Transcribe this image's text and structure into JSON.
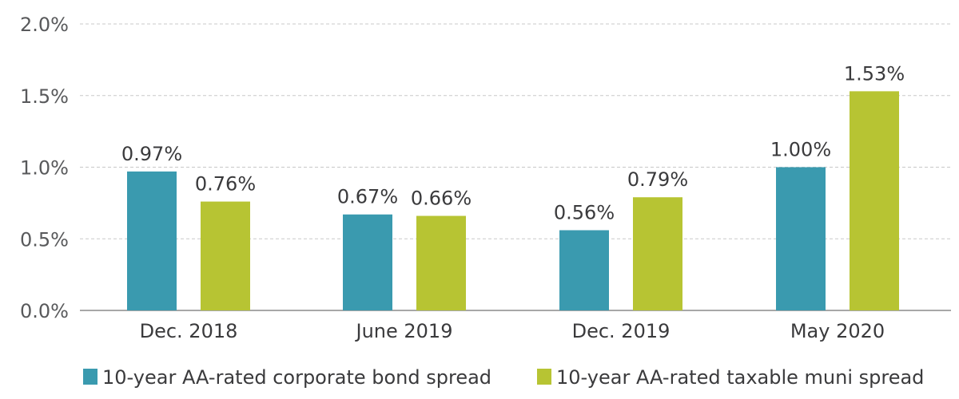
{
  "chart_data": {
    "type": "bar",
    "title": "",
    "xlabel": "",
    "ylabel": "",
    "categories": [
      "Dec. 2018",
      "June 2019",
      "Dec. 2019",
      "May 2020"
    ],
    "series": [
      {
        "name": "10-year AA-rated corporate bond spread",
        "color": "#3a9aaf",
        "values": [
          0.97,
          0.67,
          0.56,
          1.0
        ],
        "labels": [
          "0.97%",
          "0.67%",
          "0.56%",
          "1.00%"
        ]
      },
      {
        "name": "10-year AA-rated taxable muni spread",
        "color": "#b7c433",
        "values": [
          0.76,
          0.66,
          0.79,
          1.53
        ],
        "labels": [
          "0.76%",
          "0.66%",
          "0.79%",
          "1.53%"
        ]
      }
    ],
    "yticks": [
      0.0,
      0.5,
      1.0,
      1.5,
      2.0
    ],
    "ytick_labels": [
      "0.0%",
      "0.5%",
      "1.0%",
      "1.5%",
      "2.0%"
    ],
    "ylim": [
      0,
      2.0
    ],
    "unit": "%",
    "grid": true,
    "legend": "bottom"
  }
}
